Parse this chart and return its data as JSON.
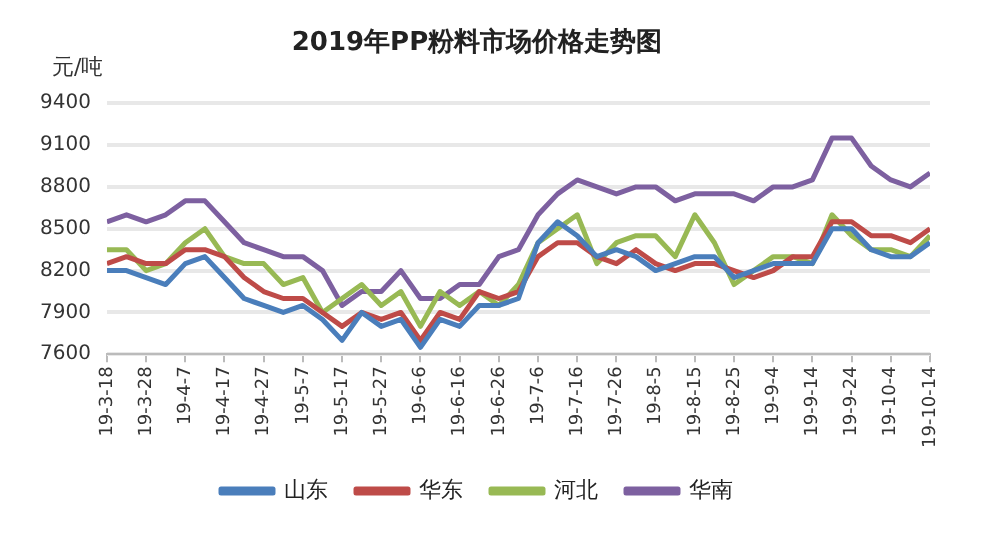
{
  "chart_data": {
    "type": "line",
    "title": "2019年PP粉料市场价格走势图",
    "ylabel": "元/吨",
    "x": [
      "2019-03-18",
      "2019-03-23",
      "2019-03-28",
      "2019-04-02",
      "2019-04-07",
      "2019-04-12",
      "2019-04-17",
      "2019-04-22",
      "2019-04-27",
      "2019-05-02",
      "2019-05-07",
      "2019-05-12",
      "2019-05-17",
      "2019-05-22",
      "2019-05-27",
      "2019-06-01",
      "2019-06-06",
      "2019-06-11",
      "2019-06-16",
      "2019-06-21",
      "2019-06-26",
      "2019-07-01",
      "2019-07-06",
      "2019-07-11",
      "2019-07-16",
      "2019-07-21",
      "2019-07-26",
      "2019-07-31",
      "2019-08-05",
      "2019-08-10",
      "2019-08-15",
      "2019-08-20",
      "2019-08-25",
      "2019-08-30",
      "2019-09-04",
      "2019-09-09",
      "2019-09-14",
      "2019-09-19",
      "2019-09-24",
      "2019-09-29",
      "2019-10-04",
      "2019-10-09",
      "2019-10-14"
    ],
    "series": [
      {
        "name": "山东",
        "color": "#4a7ebb",
        "values": [
          8200,
          8200,
          8150,
          8100,
          8250,
          8300,
          8150,
          8000,
          7950,
          7900,
          7950,
          7850,
          7700,
          7900,
          7800,
          7850,
          7650,
          7850,
          7800,
          7950,
          7950,
          8000,
          8400,
          8550,
          8450,
          8300,
          8350,
          8300,
          8200,
          8250,
          8300,
          8300,
          8150,
          8200,
          8250,
          8250,
          8250,
          8500,
          8500,
          8350,
          8300,
          8300,
          8400
        ]
      },
      {
        "name": "华东",
        "color": "#be4b48",
        "values": [
          8250,
          8300,
          8250,
          8250,
          8350,
          8350,
          8300,
          8150,
          8050,
          8000,
          8000,
          7900,
          7800,
          7900,
          7850,
          7900,
          7700,
          7900,
          7850,
          8050,
          8000,
          8050,
          8300,
          8400,
          8400,
          8300,
          8250,
          8350,
          8250,
          8200,
          8250,
          8250,
          8200,
          8150,
          8200,
          8300,
          8300,
          8550,
          8550,
          8450,
          8450,
          8400,
          8500
        ]
      },
      {
        "name": "河北",
        "color": "#98b954",
        "values": [
          8350,
          8350,
          8200,
          8250,
          8400,
          8500,
          8300,
          8250,
          8250,
          8100,
          8150,
          7900,
          8000,
          8100,
          7950,
          8050,
          7800,
          8050,
          7950,
          8050,
          7950,
          8100,
          8400,
          8500,
          8600,
          8250,
          8400,
          8450,
          8450,
          8300,
          8600,
          8400,
          8100,
          8200,
          8300,
          8300,
          8250,
          8600,
          8450,
          8350,
          8350,
          8300,
          8450
        ]
      },
      {
        "name": "华南",
        "color": "#7d60a0",
        "values": [
          8550,
          8600,
          8550,
          8600,
          8700,
          8700,
          8550,
          8400,
          8350,
          8300,
          8300,
          8200,
          7950,
          8050,
          8050,
          8200,
          8000,
          8000,
          8100,
          8100,
          8300,
          8350,
          8600,
          8750,
          8850,
          8800,
          8750,
          8800,
          8800,
          8700,
          8750,
          8750,
          8750,
          8700,
          8800,
          8800,
          8850,
          9150,
          9150,
          8950,
          8850,
          8800,
          8900
        ]
      }
    ],
    "ylim": [
      7600,
      9400
    ],
    "yticks": [
      7600,
      7900,
      8200,
      8500,
      8800,
      9100,
      9400
    ],
    "xlim": [
      "2019-03-18",
      "2019-10-14"
    ],
    "xticks": [
      {
        "value": "2019-03-18",
        "label": "19-3-18"
      },
      {
        "value": "2019-03-28",
        "label": "19-3-28"
      },
      {
        "value": "2019-04-07",
        "label": "19-4-7"
      },
      {
        "value": "2019-04-17",
        "label": "19-4-17"
      },
      {
        "value": "2019-04-27",
        "label": "19-4-27"
      },
      {
        "value": "2019-05-07",
        "label": "19-5-7"
      },
      {
        "value": "2019-05-17",
        "label": "19-5-17"
      },
      {
        "value": "2019-05-27",
        "label": "19-5-27"
      },
      {
        "value": "2019-06-06",
        "label": "19-6-6"
      },
      {
        "value": "2019-06-16",
        "label": "19-6-16"
      },
      {
        "value": "2019-06-26",
        "label": "19-6-26"
      },
      {
        "value": "2019-07-06",
        "label": "19-7-6"
      },
      {
        "value": "2019-07-16",
        "label": "19-7-16"
      },
      {
        "value": "2019-07-26",
        "label": "19-7-26"
      },
      {
        "value": "2019-08-05",
        "label": "19-8-5"
      },
      {
        "value": "2019-08-15",
        "label": "19-8-15"
      },
      {
        "value": "2019-08-25",
        "label": "19-8-25"
      },
      {
        "value": "2019-09-04",
        "label": "19-9-4"
      },
      {
        "value": "2019-09-14",
        "label": "19-9-14"
      },
      {
        "value": "2019-09-24",
        "label": "19-9-24"
      },
      {
        "value": "2019-10-04",
        "label": "19-10-4"
      },
      {
        "value": "2019-10-14",
        "label": "19-10-14"
      }
    ],
    "grid": "y",
    "legend": "bottom",
    "marker": "none",
    "line_style": "solid"
  }
}
